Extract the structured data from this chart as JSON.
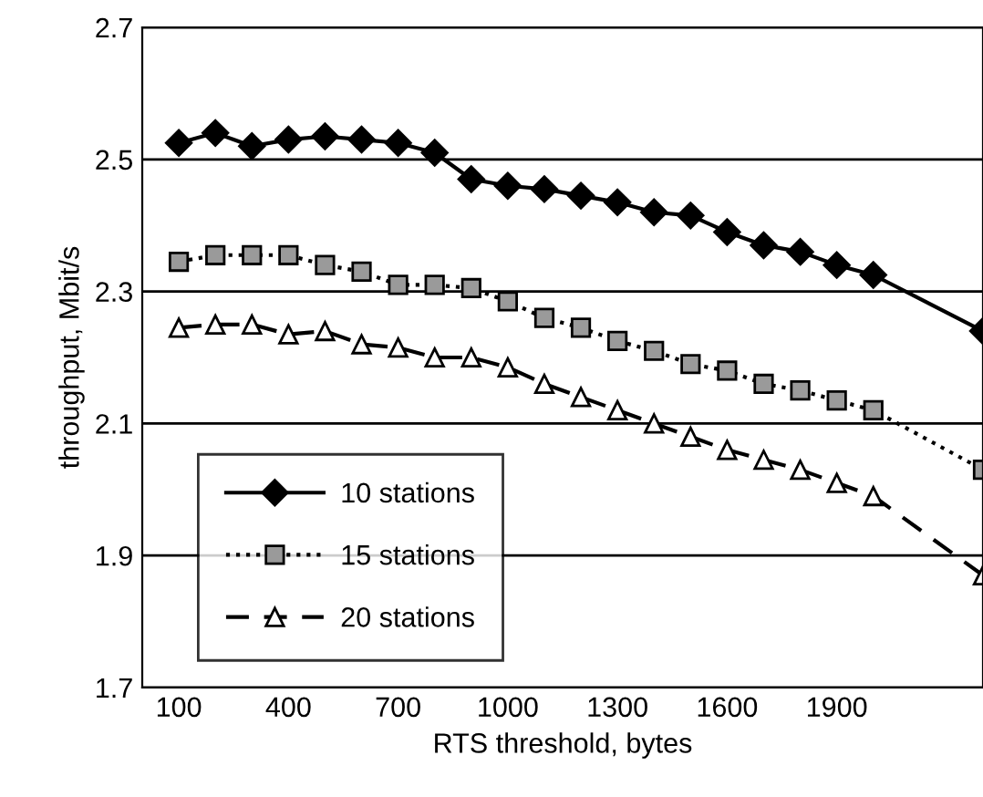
{
  "chart_data": {
    "type": "line",
    "xlabel": "RTS threshold, bytes",
    "ylabel": "throughput, Mbit/s",
    "x": [
      100,
      200,
      300,
      400,
      500,
      600,
      700,
      800,
      900,
      1000,
      1100,
      1200,
      1300,
      1400,
      1500,
      1600,
      1700,
      1800,
      1900,
      2000,
      2300
    ],
    "series": [
      {
        "name": "10 stations",
        "color": "#000000",
        "marker": "diamond",
        "line_style": "solid",
        "values": [
          2.525,
          2.54,
          2.52,
          2.53,
          2.535,
          2.53,
          2.525,
          2.51,
          2.47,
          2.46,
          2.455,
          2.445,
          2.435,
          2.42,
          2.415,
          2.39,
          2.37,
          2.36,
          2.34,
          2.325,
          2.24
        ]
      },
      {
        "name": "15 stations",
        "color": "#000000",
        "marker": "square",
        "line_style": "dotted",
        "values": [
          2.345,
          2.355,
          2.355,
          2.355,
          2.34,
          2.33,
          2.31,
          2.31,
          2.305,
          2.285,
          2.26,
          2.245,
          2.225,
          2.21,
          2.19,
          2.18,
          2.16,
          2.15,
          2.135,
          2.12,
          2.03
        ]
      },
      {
        "name": "20 stations",
        "color": "#000000",
        "marker": "triangle",
        "line_style": "dashed",
        "values": [
          2.245,
          2.25,
          2.25,
          2.235,
          2.24,
          2.22,
          2.215,
          2.2,
          2.2,
          2.185,
          2.16,
          2.14,
          2.12,
          2.1,
          2.08,
          2.06,
          2.045,
          2.03,
          2.01,
          1.99,
          1.87
        ]
      }
    ],
    "xlim": [
      0,
      2300
    ],
    "xticks": [
      100,
      400,
      700,
      1000,
      1300,
      1600,
      1900
    ],
    "ylim": [
      1.7,
      2.7
    ],
    "yticks": [
      1.7,
      1.9,
      2.1,
      2.3,
      2.5,
      2.7
    ],
    "grid": "y",
    "legend": "bottom left"
  }
}
